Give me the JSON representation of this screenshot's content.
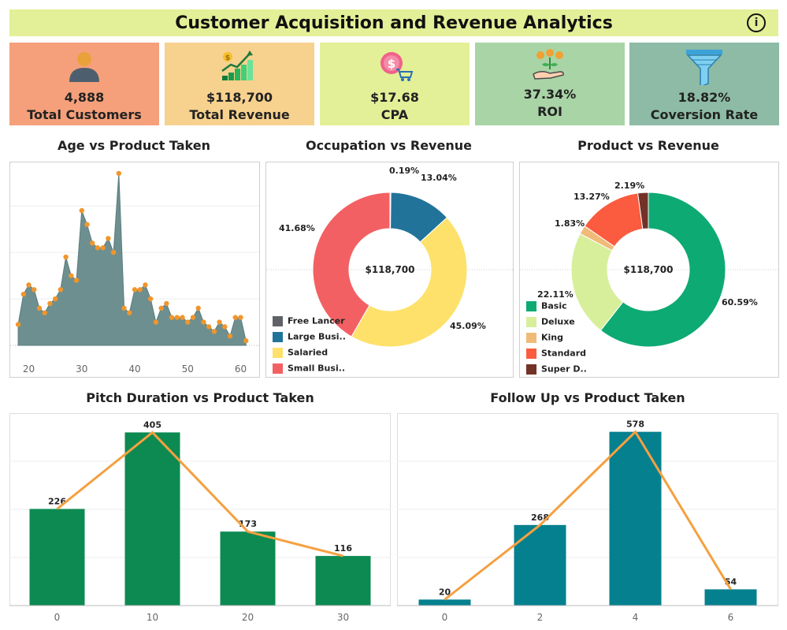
{
  "header": {
    "title": "Customer Acquisition and Revenue Analytics",
    "info_icon": "info-icon"
  },
  "kpis": [
    {
      "value": "4,888",
      "label": "Total Customers",
      "color": "#f5a07a",
      "icon": "person-icon"
    },
    {
      "value": "$118,700",
      "label": "Total Revenue",
      "color": "#f7d18e",
      "icon": "growth-chart-icon"
    },
    {
      "value": "$17.68",
      "label": "CPA",
      "color": "#e3f097",
      "icon": "dollar-cart-icon"
    },
    {
      "value": "37.34%",
      "label": "ROI",
      "color": "#a9d4a6",
      "icon": "money-hand-icon"
    },
    {
      "value": "18.82%",
      "label": "Coversion Rate",
      "color": "#8dbba6",
      "icon": "funnel-icon"
    }
  ],
  "chart_data": [
    {
      "type": "area",
      "title": "Age vs Product Taken",
      "xlabel": "",
      "ylabel": "",
      "xlim": [
        16.5,
        63.5
      ],
      "ylim": [
        0,
        38
      ],
      "x_ticks": [
        20,
        30,
        40,
        50,
        60
      ],
      "color": "#6e8f90",
      "x": [
        18,
        19,
        20,
        21,
        22,
        23,
        24,
        25,
        26,
        27,
        28,
        29,
        30,
        31,
        32,
        33,
        34,
        35,
        36,
        37,
        38,
        39,
        40,
        41,
        42,
        43,
        44,
        45,
        46,
        47,
        48,
        49,
        50,
        51,
        52,
        53,
        54,
        55,
        56,
        57,
        58,
        59,
        60,
        61
      ],
      "values": [
        4.5,
        11,
        13,
        12,
        8,
        7,
        9,
        10,
        12,
        19,
        15,
        14,
        29,
        26,
        22,
        21,
        21,
        23,
        20,
        37,
        8,
        7,
        12,
        12,
        13,
        10,
        5,
        8,
        9,
        6,
        6,
        6,
        5,
        6,
        8,
        5,
        4,
        3,
        5,
        4,
        2,
        6,
        6,
        1
      ]
    },
    {
      "type": "pie",
      "title": "Occupation vs Revenue",
      "center_label": "$118,700",
      "labels": [
        "Free Lancer",
        "Large Busi..",
        "Salaried",
        "Small Busi.."
      ],
      "values": [
        0.19,
        13.04,
        45.09,
        41.68
      ],
      "value_labels": [
        "0.19%",
        "13.04%",
        "45.09%",
        "41.68%"
      ],
      "colors": [
        "#5f6368",
        "#22739a",
        "#fde16a",
        "#f36063"
      ],
      "legend": "bottom-left"
    },
    {
      "type": "pie",
      "title": "Product vs Revenue",
      "center_label": "$118,700",
      "labels": [
        "Basic",
        "Deluxe",
        "King",
        "Standard",
        "Super D.."
      ],
      "values": [
        60.59,
        22.11,
        1.83,
        13.27,
        2.19
      ],
      "value_labels": [
        "60.59%",
        "22.11%",
        "1.83%",
        "13.27%",
        "2.19%"
      ],
      "colors": [
        "#0daa73",
        "#d7ef9b",
        "#f0bb78",
        "#fb5b3e",
        "#733228"
      ],
      "legend": "bottom-left"
    },
    {
      "type": "bar",
      "title": "Pitch Duration vs Product Taken",
      "categories": [
        "0",
        "10",
        "20",
        "30"
      ],
      "values": [
        226,
        405,
        173,
        116
      ],
      "ylim": [
        0,
        450
      ],
      "color": "#0c8a52",
      "line_color": "#f5a040",
      "xlabel": "",
      "ylabel": ""
    },
    {
      "type": "bar",
      "title": "Follow Up vs Product Taken",
      "categories": [
        "0",
        "2",
        "4",
        "6"
      ],
      "values": [
        20,
        268,
        578,
        54
      ],
      "ylim": [
        0,
        640
      ],
      "color": "#05808f",
      "line_color": "#f5a040",
      "xlabel": "",
      "ylabel": ""
    }
  ]
}
